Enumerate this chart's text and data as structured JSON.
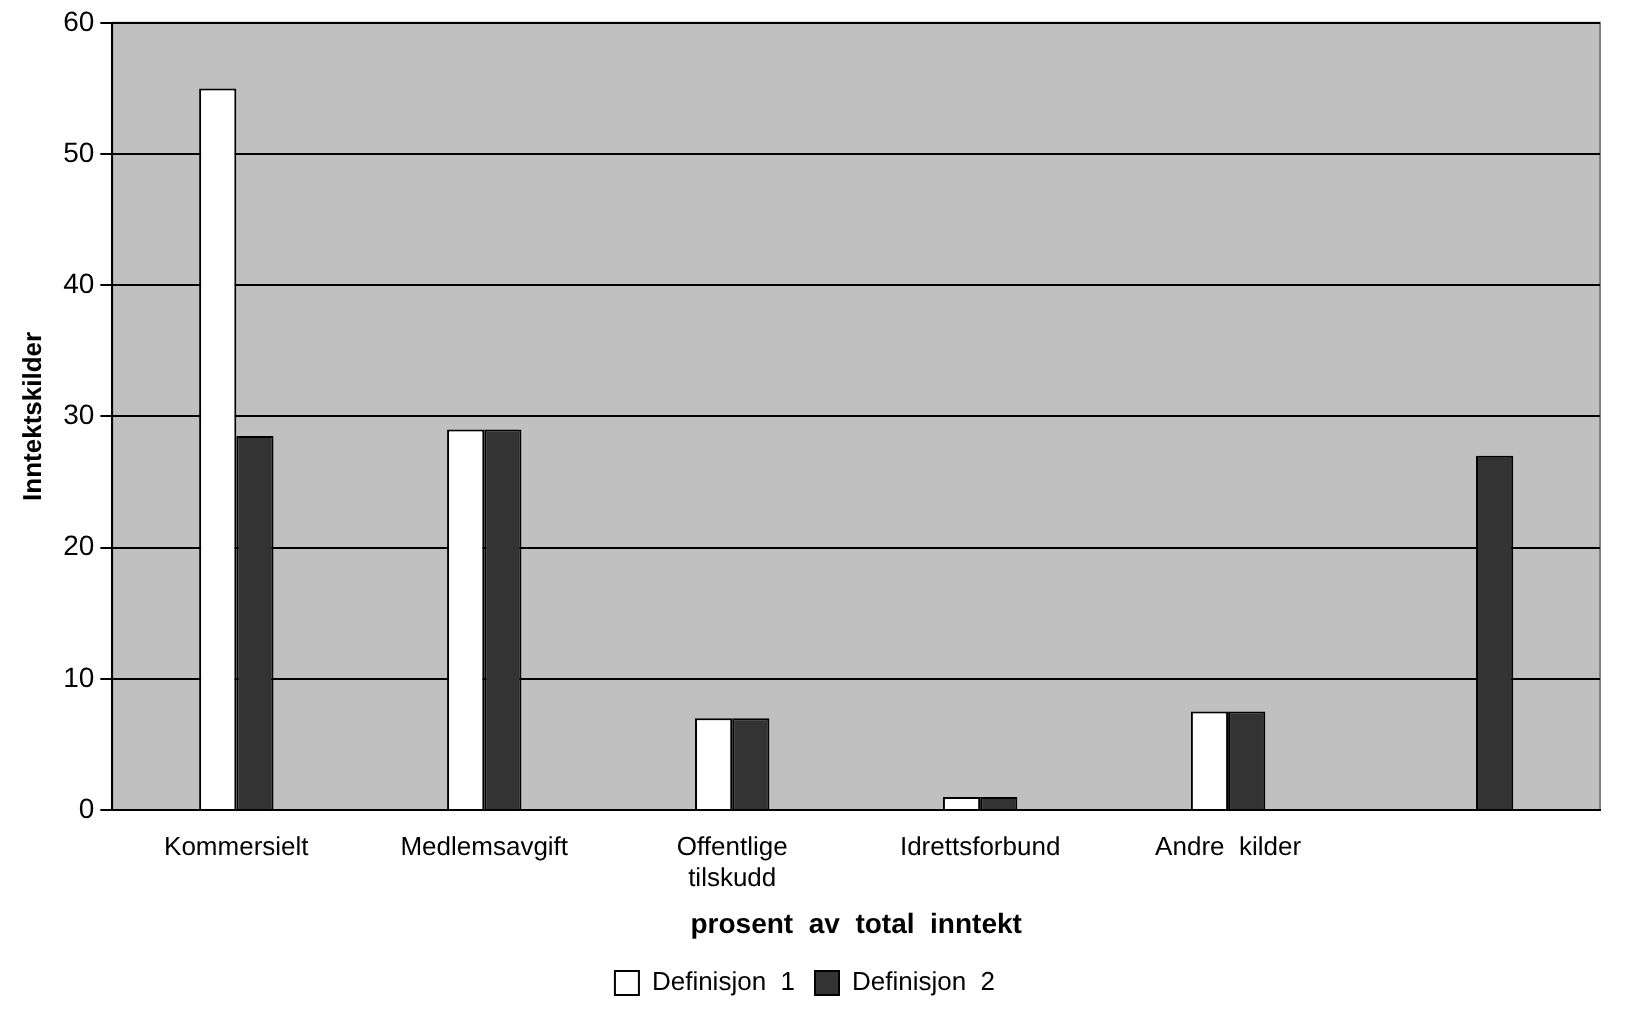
{
  "chart_data": {
    "type": "bar",
    "xlabel": "prosent  av  total  inntekt",
    "ylabel": "Inntektskilder",
    "categories": [
      "Kommersielt",
      "Medlemsavgift",
      "Offentlige tilskudd",
      "Idrettsforbund",
      "Andre  kilder",
      null
    ],
    "series": [
      {
        "name": "Definisjon  1",
        "color": "#ffffff",
        "values": [
          55,
          29,
          7,
          1,
          7.5,
          0
        ]
      },
      {
        "name": "Definisjon  2",
        "color": "#333333",
        "values": [
          28.5,
          29,
          7,
          1,
          7.5,
          27
        ]
      }
    ],
    "ylim": [
      0,
      60
    ],
    "yticks": [
      0,
      10,
      20,
      30,
      40,
      50,
      60
    ],
    "grid": "y",
    "legend": "bottom"
  }
}
